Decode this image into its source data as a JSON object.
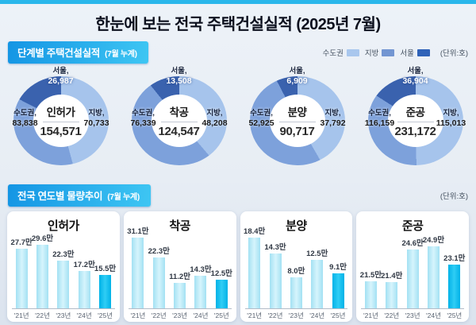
{
  "page": {
    "title": "한눈에 보는 전국 주택건설실적 (2025년 7월)"
  },
  "colors": {
    "top_bar": "#2ab7eb",
    "badge_gradient_start": "#1495e4",
    "badge_gradient_end": "#3ec6f3",
    "pie_regional": "#a6c4ec",
    "pie_capital": "#7da1db",
    "pie_seoul": "#3a62ae",
    "legend_capital": "#a9c7ee",
    "legend_regional": "#7396d2",
    "legend_seoul": "#2f62b8",
    "bar_normal_edge": "#a3e1f3",
    "bar_normal_center": "#d6f4fc",
    "bar_highlight_edge": "#00b2e7",
    "bar_highlight_center": "#2fcdf5"
  },
  "section1": {
    "header": "단계별 주택건설실적",
    "header_sub": "(7월 누계)",
    "unit": "(단위:호)",
    "legend": [
      {
        "label": "수도권",
        "color": "#a9c7ee"
      },
      {
        "label": "지방",
        "color": "#7396d2"
      },
      {
        "label": "서울",
        "color": "#2f62b8"
      }
    ],
    "donuts": [
      {
        "title": "인허가",
        "total": "154,571",
        "capital_label": "수도권,",
        "capital": "83,838",
        "regional_label": "지방,",
        "regional": "70,733",
        "seoul_label": "서울,",
        "seoul": "26,987"
      },
      {
        "title": "착공",
        "total": "124,547",
        "capital_label": "수도권,",
        "capital": "76,339",
        "regional_label": "지방,",
        "regional": "48,208",
        "seoul_label": "서울,",
        "seoul": "13,508"
      },
      {
        "title": "분양",
        "total": "90,717",
        "capital_label": "수도권,",
        "capital": "52,925",
        "regional_label": "지방,",
        "regional": "37,792",
        "seoul_label": "서울,",
        "seoul": "6,909"
      },
      {
        "title": "준공",
        "total": "231,172",
        "capital_label": "수도권,",
        "capital": "116,159",
        "regional_label": "지방,",
        "regional": "115,013",
        "seoul_label": "서울,",
        "seoul": "36,904"
      }
    ]
  },
  "section2": {
    "header": "전국 연도별 물량추이",
    "header_sub": "(7월 누계)",
    "unit": "(단위:호)"
  },
  "chart_data": [
    {
      "type": "donut",
      "title": "인허가",
      "total": 154571,
      "capital": 83838,
      "regional": 70733,
      "seoul": 26987
    },
    {
      "type": "donut",
      "title": "착공",
      "total": 124547,
      "capital": 76339,
      "regional": 48208,
      "seoul": 13508
    },
    {
      "type": "donut",
      "title": "분양",
      "total": 90717,
      "capital": 52925,
      "regional": 37792,
      "seoul": 6909
    },
    {
      "type": "donut",
      "title": "준공",
      "total": 231172,
      "capital": 116159,
      "regional": 115013,
      "seoul": 36904
    },
    {
      "type": "bar",
      "title": "인허가",
      "categories": [
        "'21년",
        "'22년",
        "'23년",
        "'24년",
        "'25년"
      ],
      "values": [
        27.7,
        29.6,
        22.3,
        17.2,
        15.5
      ],
      "labels": [
        "27.7만",
        "29.6만",
        "22.3만",
        "17.2만",
        "15.5만"
      ],
      "ylim": [
        0,
        34
      ],
      "highlight_index": 4
    },
    {
      "type": "bar",
      "title": "착공",
      "categories": [
        "'21년",
        "'22년",
        "'23년",
        "'24년",
        "'25년"
      ],
      "values": [
        31.1,
        22.3,
        11.2,
        14.3,
        12.5
      ],
      "labels": [
        "31.1만",
        "22.3만",
        "11.2만",
        "14.3만",
        "12.5만"
      ],
      "ylim": [
        0,
        32
      ],
      "highlight_index": 4
    },
    {
      "type": "bar",
      "title": "분양",
      "categories": [
        "'21년",
        "'22년",
        "'23년",
        "'24년",
        "'25년"
      ],
      "values": [
        18.4,
        14.3,
        8.0,
        12.5,
        9.1
      ],
      "labels": [
        "18.4만",
        "14.3만",
        "8.0만",
        "12.5만",
        "9.1만"
      ],
      "ylim": [
        0,
        19
      ],
      "highlight_index": 4
    },
    {
      "type": "bar",
      "title": "준공",
      "categories": [
        "'21년",
        "'22년",
        "'23년",
        "'24년",
        "'25년"
      ],
      "values": [
        21.5,
        21.4,
        24.6,
        24.9,
        23.1
      ],
      "labels": [
        "21.5만",
        "21.4만",
        "24.6만",
        "24.9만",
        "23.1만"
      ],
      "ylim": [
        18.8,
        26
      ],
      "highlight_index": 4
    }
  ]
}
